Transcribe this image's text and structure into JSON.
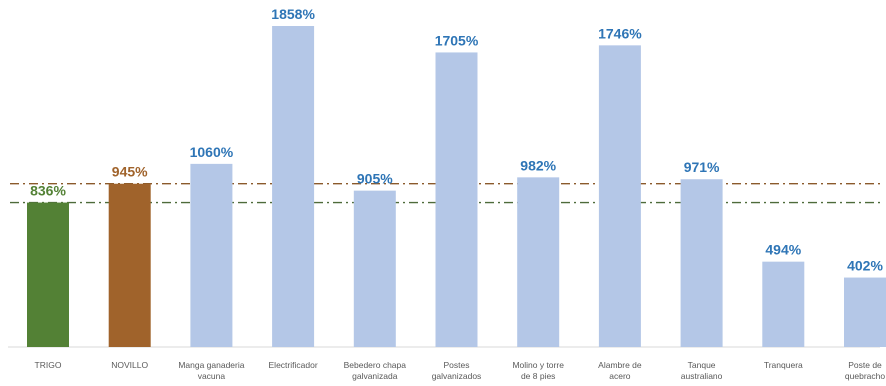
{
  "chart_data": {
    "type": "bar",
    "title": "",
    "xlabel": "",
    "ylabel": "",
    "ylim": [
      0,
      1950
    ],
    "categories": [
      [
        "TRIGO"
      ],
      [
        "NOVILLO"
      ],
      [
        "Manga ganaderia",
        "vacuna"
      ],
      [
        "Electrificador"
      ],
      [
        "Bebedero chapa",
        "galvanizada"
      ],
      [
        "Postes",
        "galvanizados"
      ],
      [
        "Molino y torre",
        "de 8 pies"
      ],
      [
        "Alambre de",
        "acero"
      ],
      [
        "Tanque",
        "australiano"
      ],
      [
        "Tranquera"
      ],
      [
        "Poste de",
        "quebracho"
      ]
    ],
    "values": [
      836,
      945,
      1060,
      1858,
      905,
      1705,
      982,
      1746,
      971,
      494,
      402
    ],
    "value_labels": [
      "836%",
      "945%",
      "1060%",
      "1858%",
      "905%",
      "1705%",
      "982%",
      "1746%",
      "971%",
      "494%",
      "402%"
    ],
    "bar_colors": [
      "#538135",
      "#A0632B",
      "#B4C7E7",
      "#B4C7E7",
      "#B4C7E7",
      "#B4C7E7",
      "#B4C7E7",
      "#B4C7E7",
      "#B4C7E7",
      "#B4C7E7",
      "#B4C7E7"
    ],
    "label_colors": [
      "#538135",
      "#A0632B",
      "#2E75B6",
      "#2E75B6",
      "#2E75B6",
      "#2E75B6",
      "#2E75B6",
      "#2E75B6",
      "#2E75B6",
      "#2E75B6",
      "#2E75B6"
    ],
    "reference_lines": [
      {
        "value": 945,
        "color": "#8B5A2B",
        "style": "dash-dot"
      },
      {
        "value": 836,
        "color": "#4E6B3A",
        "style": "dash-dot"
      }
    ],
    "grid": false,
    "legend": "none"
  }
}
